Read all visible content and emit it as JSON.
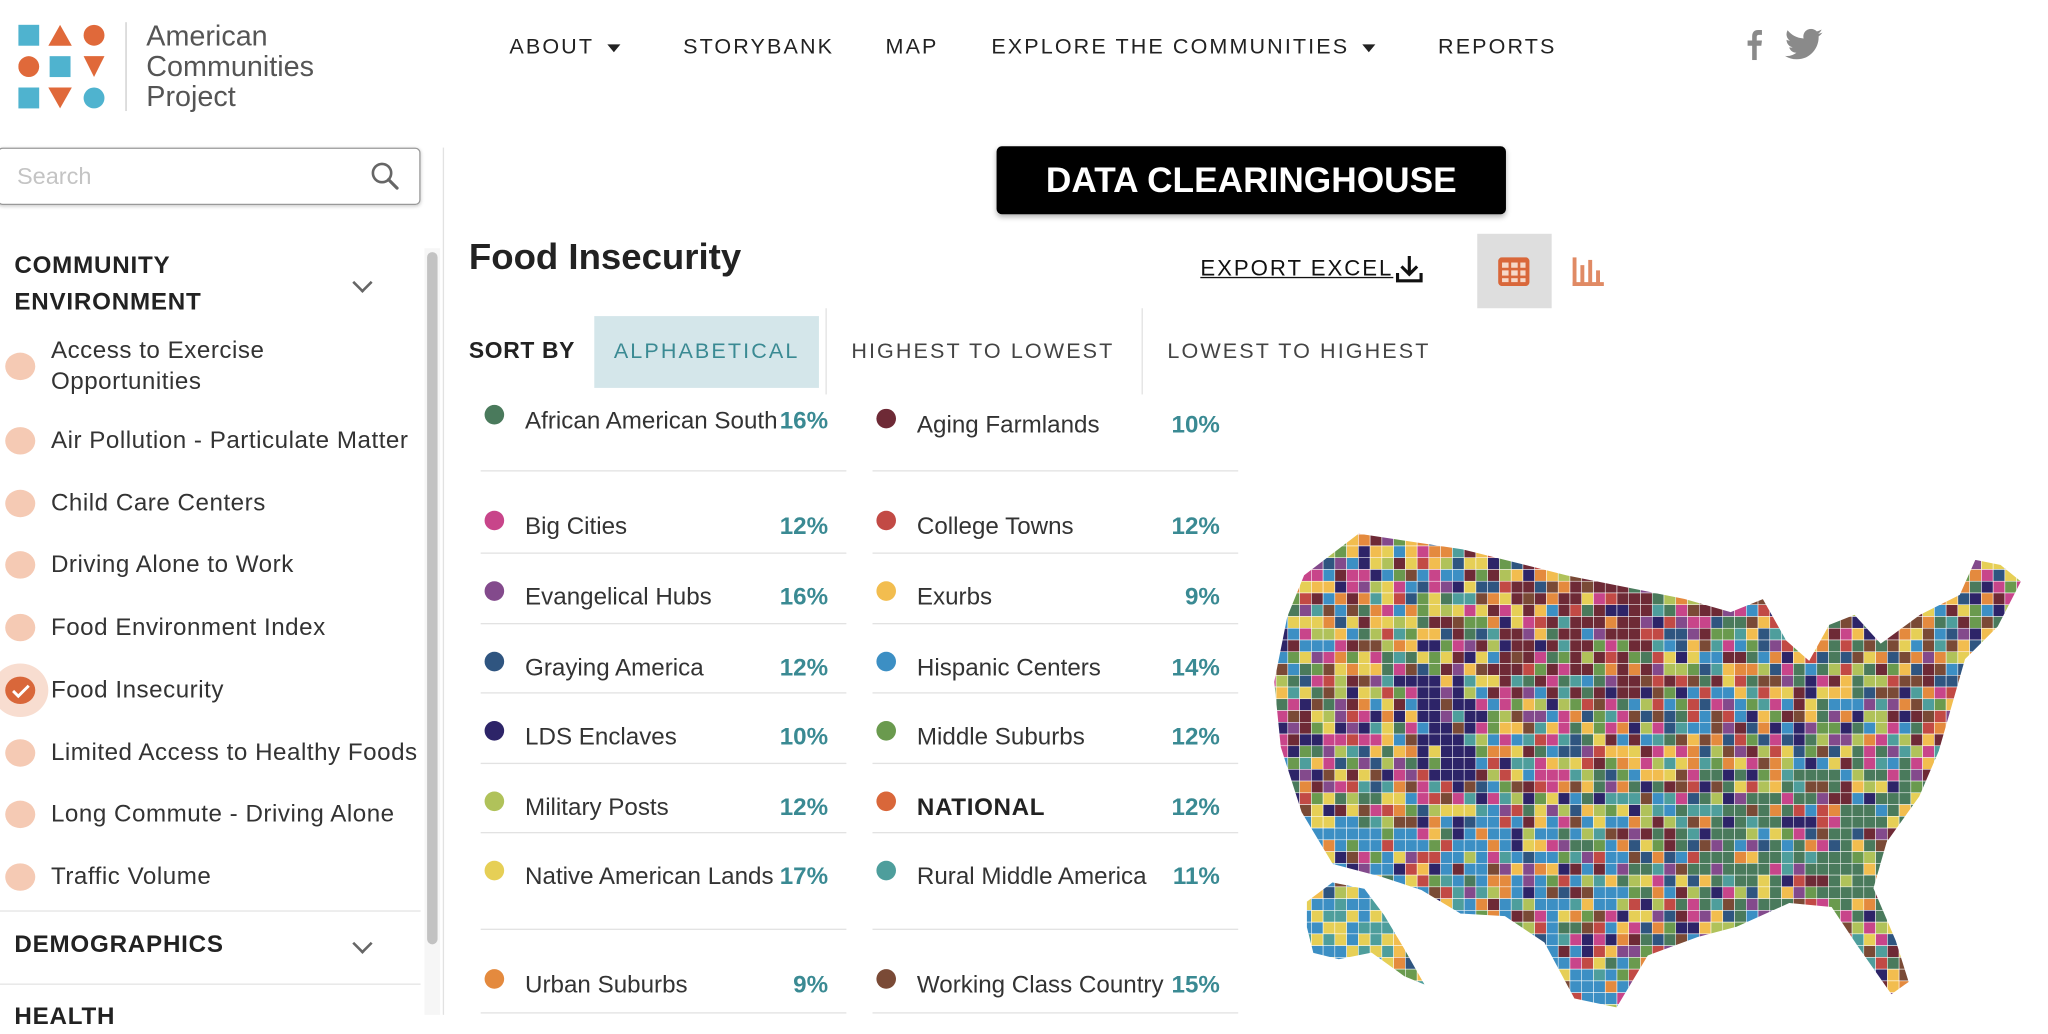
{
  "logo": {
    "text_lines": [
      "American",
      "Communities",
      "Project"
    ]
  },
  "nav": {
    "items": [
      {
        "label": "ABOUT",
        "dropdown": true
      },
      {
        "label": "STORYBANK",
        "dropdown": false
      },
      {
        "label": "MAP",
        "dropdown": false
      },
      {
        "label": "EXPLORE THE COMMUNITIES",
        "dropdown": true
      },
      {
        "label": "REPORTS",
        "dropdown": false
      }
    ],
    "social": [
      "facebook-icon",
      "twitter-icon"
    ]
  },
  "sidebar": {
    "search_placeholder": "Search",
    "sections": [
      {
        "title": "COMMUNITY ENVIRONMENT",
        "expanded": true,
        "items": [
          {
            "label": "Access to Exercise Opportunities",
            "selected": false
          },
          {
            "label": "Air Pollution - Particulate Matter",
            "selected": false
          },
          {
            "label": "Child Care Centers",
            "selected": false
          },
          {
            "label": "Driving Alone to Work",
            "selected": false
          },
          {
            "label": "Food Environment Index",
            "selected": false
          },
          {
            "label": "Food Insecurity",
            "selected": true
          },
          {
            "label": "Limited Access to Healthy Foods",
            "selected": false
          },
          {
            "label": "Long Commute - Driving Alone",
            "selected": false
          },
          {
            "label": "Traffic Volume",
            "selected": false
          }
        ]
      },
      {
        "title": "DEMOGRAPHICS",
        "expanded": false
      },
      {
        "title": "HEALTH",
        "expanded": false
      }
    ]
  },
  "main": {
    "banner": "DATA CLEARINGHOUSE",
    "title": "Food Insecurity",
    "export_label": "EXPORT EXCEL",
    "view_toggle": {
      "active": "table",
      "options": [
        "table-icon",
        "bar-chart-icon"
      ]
    },
    "sort": {
      "label": "SORT BY",
      "options": [
        "ALPHABETICAL",
        "HIGHEST TO LOWEST",
        "LOWEST TO HIGHEST"
      ],
      "active": "ALPHABETICAL"
    },
    "communities": [
      {
        "name": "African American South",
        "value": "16%",
        "color": "#4a7a5c"
      },
      {
        "name": "Aging Farmlands",
        "value": "10%",
        "color": "#6e2a36"
      },
      {
        "name": "Big Cities",
        "value": "12%",
        "color": "#c8458a"
      },
      {
        "name": "College Towns",
        "value": "12%",
        "color": "#c24a45"
      },
      {
        "name": "Evangelical Hubs",
        "value": "16%",
        "color": "#834a8c"
      },
      {
        "name": "Exurbs",
        "value": "9%",
        "color": "#f2bd4f"
      },
      {
        "name": "Graying America",
        "value": "12%",
        "color": "#2f5580"
      },
      {
        "name": "Hispanic Centers",
        "value": "14%",
        "color": "#3c8fc4"
      },
      {
        "name": "LDS Enclaves",
        "value": "10%",
        "color": "#2d2468"
      },
      {
        "name": "Middle Suburbs",
        "value": "12%",
        "color": "#6a9a4e"
      },
      {
        "name": "Military Posts",
        "value": "12%",
        "color": "#b0c25a"
      },
      {
        "name": "NATIONAL",
        "value": "12%",
        "color": "#d9673a",
        "bold": true
      },
      {
        "name": "Native American Lands",
        "value": "17%",
        "color": "#e6cf56"
      },
      {
        "name": "Rural Middle America",
        "value": "11%",
        "color": "#4e9e9c"
      },
      {
        "name": "Urban Suburbs",
        "value": "9%",
        "color": "#e48a3e"
      },
      {
        "name": "Working Class Country",
        "value": "15%",
        "color": "#7a4a36"
      }
    ]
  },
  "colors": {
    "accent": "#d9673a",
    "value_teal": "#3a8a93",
    "sort_active_bg": "#d4e6ea",
    "unselected_dot": "#f5cab4",
    "logo_blue": "#4fb3cf",
    "logo_orange": "#e0693a"
  }
}
